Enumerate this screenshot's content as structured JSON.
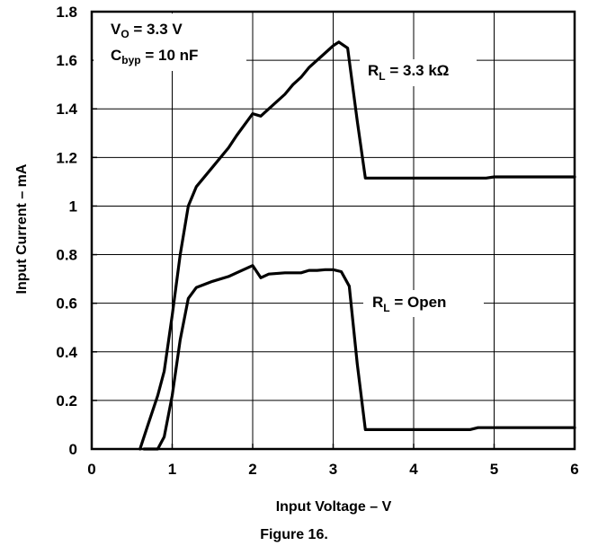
{
  "chart_data": {
    "type": "line",
    "title": "",
    "caption": "Figure 16.",
    "xlabel": "Input Voltage – V",
    "ylabel": "Input Current – mA",
    "xlim": [
      0,
      6
    ],
    "ylim": [
      0,
      1.8
    ],
    "x_ticks": [
      "0",
      "1",
      "2",
      "3",
      "4",
      "5",
      "6"
    ],
    "y_ticks": [
      "0",
      "0.2",
      "0.4",
      "0.6",
      "0.8",
      "1",
      "1.2",
      "1.4",
      "1.6",
      "1.8"
    ],
    "grid": true,
    "annotations": {
      "vo": {
        "main": "V",
        "sub": "O",
        "rest": " = 3.3 V"
      },
      "cbyp": {
        "main": "C",
        "sub": "byp",
        "rest": " = 10 nF"
      }
    },
    "series": [
      {
        "label_main": "R",
        "label_sub": "L",
        "label_rest": " = 3.3 kΩ",
        "points": [
          [
            0.6,
            0
          ],
          [
            0.7,
            0.1
          ],
          [
            0.82,
            0.22
          ],
          [
            0.9,
            0.32
          ],
          [
            1.0,
            0.55
          ],
          [
            1.1,
            0.8
          ],
          [
            1.2,
            1.0
          ],
          [
            1.3,
            1.08
          ],
          [
            1.5,
            1.16
          ],
          [
            1.7,
            1.24
          ],
          [
            1.8,
            1.29
          ],
          [
            2.0,
            1.38
          ],
          [
            2.1,
            1.37
          ],
          [
            2.2,
            1.4
          ],
          [
            2.4,
            1.46
          ],
          [
            2.5,
            1.5
          ],
          [
            2.6,
            1.53
          ],
          [
            2.7,
            1.57
          ],
          [
            2.9,
            1.63
          ],
          [
            3.0,
            1.66
          ],
          [
            3.07,
            1.675
          ],
          [
            3.18,
            1.65
          ],
          [
            3.3,
            1.35
          ],
          [
            3.4,
            1.115
          ],
          [
            4.6,
            1.115
          ],
          [
            4.7,
            1.115
          ],
          [
            4.8,
            1.115
          ],
          [
            4.9,
            1.115
          ],
          [
            5.0,
            1.12
          ],
          [
            6.0,
            1.12
          ]
        ]
      },
      {
        "label_main": "R",
        "label_sub": "L",
        "label_rest": " = Open",
        "points": [
          [
            0.65,
            0
          ],
          [
            0.82,
            0
          ],
          [
            0.9,
            0.05
          ],
          [
            1.0,
            0.22
          ],
          [
            1.1,
            0.45
          ],
          [
            1.2,
            0.62
          ],
          [
            1.3,
            0.665
          ],
          [
            1.5,
            0.69
          ],
          [
            1.7,
            0.71
          ],
          [
            1.8,
            0.725
          ],
          [
            2.0,
            0.755
          ],
          [
            2.1,
            0.705
          ],
          [
            2.2,
            0.72
          ],
          [
            2.4,
            0.725
          ],
          [
            2.6,
            0.725
          ],
          [
            2.7,
            0.735
          ],
          [
            2.8,
            0.735
          ],
          [
            2.9,
            0.738
          ],
          [
            3.0,
            0.738
          ],
          [
            3.1,
            0.73
          ],
          [
            3.2,
            0.67
          ],
          [
            3.3,
            0.35
          ],
          [
            3.4,
            0.08
          ],
          [
            4.7,
            0.08
          ],
          [
            4.8,
            0.088
          ],
          [
            4.9,
            0.088
          ],
          [
            6.0,
            0.088
          ]
        ]
      }
    ]
  }
}
